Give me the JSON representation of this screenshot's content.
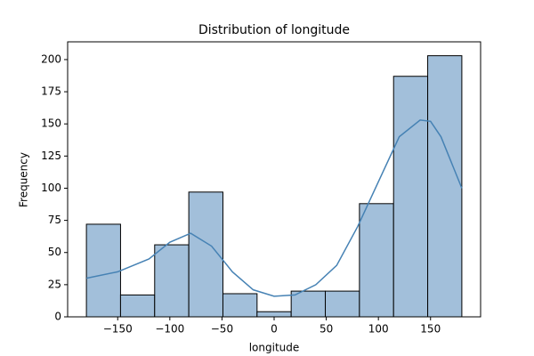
{
  "chart_data": {
    "type": "histogram",
    "title": "Distribution of longitude",
    "x_label": "longitude",
    "y_label": "Frequency",
    "bins": [
      -180,
      -147.27,
      -114.55,
      -81.82,
      -49.09,
      -16.36,
      16.36,
      49.09,
      81.82,
      114.55,
      147.27,
      180
    ],
    "counts": [
      72,
      17,
      56,
      97,
      18,
      4,
      20,
      20,
      88,
      187,
      203
    ],
    "color": "#a2bfda",
    "edgecolor": "#000000",
    "kde": {
      "color": "#4682b4",
      "x": [
        -180,
        -150,
        -120,
        -100,
        -80,
        -60,
        -40,
        -20,
        0,
        20,
        40,
        60,
        80,
        100,
        120,
        140,
        150,
        160,
        180
      ],
      "values": [
        30,
        35,
        45,
        58,
        65,
        55,
        35,
        21,
        16,
        17,
        25,
        40,
        70,
        105,
        140,
        153,
        152,
        140,
        100
      ]
    },
    "xlim": [
      -198,
      198
    ],
    "ylim": [
      0,
      213.8
    ],
    "xticks": [
      {
        "value": -150,
        "label": "−150"
      },
      {
        "value": -100,
        "label": "−100"
      },
      {
        "value": -50,
        "label": "−50"
      },
      0,
      50,
      100,
      150
    ],
    "yticks": [
      0,
      25,
      50,
      75,
      100,
      125,
      150,
      175,
      200
    ]
  }
}
